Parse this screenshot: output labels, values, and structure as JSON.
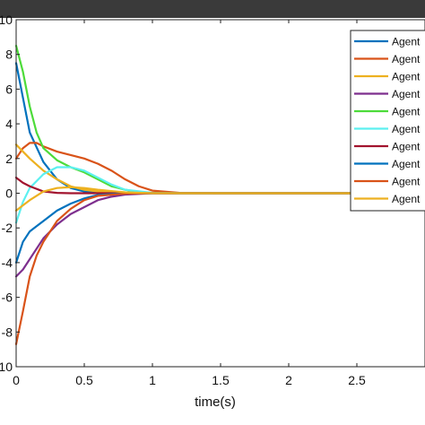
{
  "chart_data": {
    "type": "line",
    "title": "",
    "xlabel": "time(s)",
    "ylabel": "",
    "xlim": [
      0,
      3
    ],
    "ylim": [
      -10,
      10
    ],
    "x_ticks": [
      0,
      0.5,
      1,
      1.5,
      2,
      2.5
    ],
    "y_ticks": [
      -10,
      -8,
      -6,
      -4,
      -2,
      0,
      2,
      4,
      6,
      8,
      10
    ],
    "grid": false,
    "legend_position": "top-right",
    "series": [
      {
        "name": "Agent",
        "color": "#0072BD",
        "x": [
          0,
          0.05,
          0.1,
          0.2,
          0.3,
          0.4,
          0.5,
          0.6,
          0.8,
          1.0,
          1.2,
          1.5,
          2.0,
          3.0
        ],
        "y": [
          7.5,
          5.5,
          3.5,
          1.8,
          0.8,
          0.3,
          0.1,
          0.03,
          0,
          0,
          0,
          0,
          0,
          0
        ]
      },
      {
        "name": "Agent",
        "color": "#D95319",
        "x": [
          0,
          0.05,
          0.1,
          0.15,
          0.2,
          0.3,
          0.4,
          0.5,
          0.6,
          0.7,
          0.8,
          0.9,
          1.0,
          1.2,
          1.5,
          2.0,
          3.0
        ],
        "y": [
          2.0,
          2.6,
          2.9,
          2.9,
          2.7,
          2.4,
          2.2,
          2.0,
          1.7,
          1.3,
          0.8,
          0.4,
          0.15,
          0.02,
          0,
          0,
          0
        ]
      },
      {
        "name": "Agent",
        "color": "#EDB120",
        "x": [
          0,
          0.05,
          0.1,
          0.2,
          0.3,
          0.4,
          0.5,
          0.6,
          0.8,
          1.0,
          1.5,
          2.0,
          3.0
        ],
        "y": [
          2.8,
          2.4,
          2.0,
          1.3,
          0.8,
          0.4,
          0.2,
          0.1,
          0.02,
          0,
          0,
          0,
          0
        ]
      },
      {
        "name": "Agent",
        "color": "#7E2F8E",
        "x": [
          0,
          0.05,
          0.1,
          0.2,
          0.3,
          0.4,
          0.5,
          0.6,
          0.7,
          0.8,
          1.0,
          1.2,
          1.5,
          2.0,
          3.0
        ],
        "y": [
          -4.8,
          -4.4,
          -3.8,
          -2.6,
          -1.8,
          -1.2,
          -0.8,
          -0.4,
          -0.2,
          -0.08,
          0,
          0,
          0,
          0,
          0
        ]
      },
      {
        "name": "Agent",
        "color": "#4DDB3A",
        "x": [
          0,
          0.05,
          0.1,
          0.15,
          0.2,
          0.3,
          0.4,
          0.5,
          0.6,
          0.7,
          0.8,
          0.9,
          1.0,
          1.2,
          1.5,
          2.0,
          3.0
        ],
        "y": [
          8.5,
          7.0,
          5.0,
          3.5,
          2.6,
          1.9,
          1.5,
          1.2,
          0.8,
          0.4,
          0.2,
          0.07,
          0.02,
          0,
          0,
          0,
          0
        ]
      },
      {
        "name": "Agent",
        "color": "#5CF0F0",
        "x": [
          0,
          0.05,
          0.1,
          0.2,
          0.3,
          0.4,
          0.5,
          0.6,
          0.7,
          0.8,
          1.0,
          1.2,
          1.5,
          2.0,
          3.0
        ],
        "y": [
          -1.7,
          -0.5,
          0.3,
          1.1,
          1.5,
          1.5,
          1.3,
          0.9,
          0.5,
          0.2,
          0.02,
          0,
          0,
          0,
          0
        ]
      },
      {
        "name": "Agent",
        "color": "#A2142F",
        "x": [
          0,
          0.05,
          0.1,
          0.2,
          0.3,
          0.4,
          0.5,
          0.6,
          0.8,
          1.0,
          1.5,
          2.0,
          3.0
        ],
        "y": [
          0.9,
          0.6,
          0.4,
          0.1,
          0.02,
          0,
          0,
          0,
          0,
          0,
          0,
          0,
          0
        ]
      },
      {
        "name": "Agent",
        "color": "#0072BD",
        "x": [
          0,
          0.05,
          0.1,
          0.2,
          0.3,
          0.4,
          0.5,
          0.6,
          0.8,
          1.0,
          1.5,
          2.0,
          3.0
        ],
        "y": [
          -4.0,
          -2.8,
          -2.2,
          -1.6,
          -1.0,
          -0.6,
          -0.3,
          -0.1,
          0,
          0,
          0,
          0,
          0
        ]
      },
      {
        "name": "Agent",
        "color": "#D95319",
        "x": [
          0,
          0.05,
          0.1,
          0.15,
          0.2,
          0.3,
          0.4,
          0.5,
          0.6,
          0.8,
          1.0,
          1.5,
          2.0,
          3.0
        ],
        "y": [
          -8.7,
          -6.8,
          -4.8,
          -3.6,
          -2.8,
          -1.6,
          -0.9,
          -0.4,
          -0.15,
          -0.02,
          0,
          0,
          0,
          0
        ]
      },
      {
        "name": "Agent",
        "color": "#EDB120",
        "x": [
          0,
          0.05,
          0.1,
          0.2,
          0.3,
          0.4,
          0.5,
          0.6,
          0.8,
          1.0,
          1.5,
          2.0,
          3.0
        ],
        "y": [
          -1.0,
          -0.7,
          -0.4,
          0.1,
          0.3,
          0.35,
          0.3,
          0.2,
          0.05,
          0,
          0,
          0,
          0
        ]
      }
    ]
  }
}
